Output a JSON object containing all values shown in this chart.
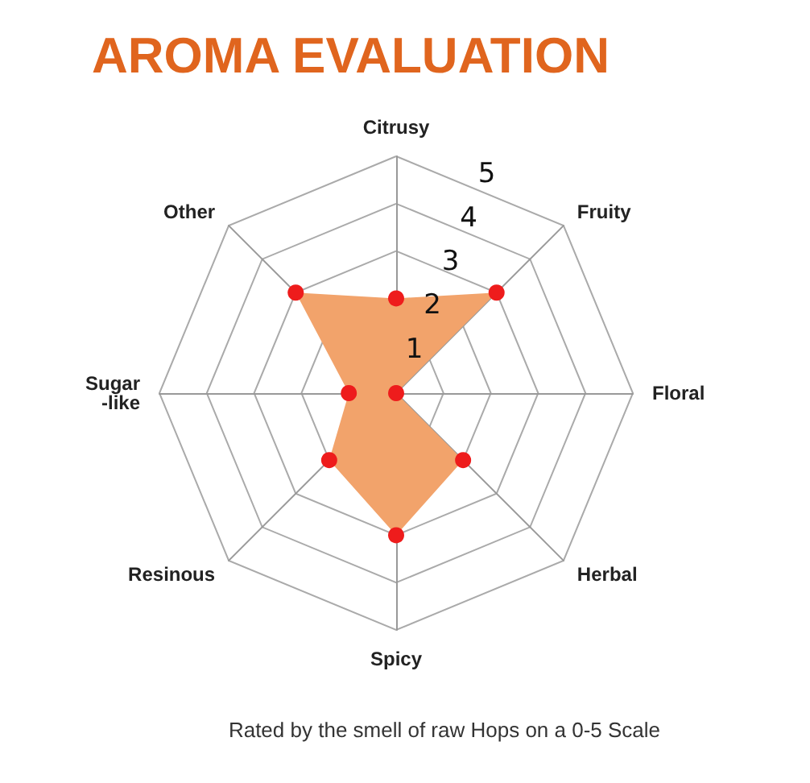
{
  "chart_data": {
    "type": "radar",
    "title": "AROMA EVALUATION",
    "annotations": [
      "Rated by the smell of raw Hops on a 0-5 Scale"
    ],
    "categories": [
      "Citrusy",
      "Fruity",
      "Floral",
      "Herbal",
      "Spicy",
      "Resinous",
      "Sugar\n-like",
      "Other"
    ],
    "series": [
      {
        "color": "#f2a36b",
        "colors": [
          "#ee1c1c",
          "#ee1c1c",
          "#ee1c1c",
          "#ee1c1c",
          "#ee1c1c",
          "#ee1c1c",
          "#ee1c1c",
          "#ee1c1c"
        ],
        "values": [
          2,
          3,
          0,
          2,
          3,
          2,
          1,
          3
        ]
      }
    ],
    "ylim": [
      0,
      5
    ],
    "yticks": [
      1,
      2,
      3,
      4,
      5
    ],
    "marker": "circle"
  }
}
